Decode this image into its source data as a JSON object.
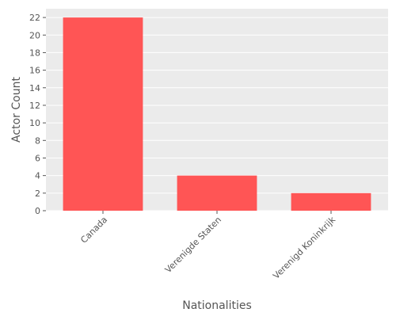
{
  "chart_data": {
    "type": "bar",
    "categories": [
      "Canada",
      "Verenigde Staten",
      "Verenigd Koninkrijk"
    ],
    "values": [
      22,
      4,
      2
    ],
    "title": "",
    "xlabel": "Nationalities",
    "ylabel": "Actor Count",
    "ylim": [
      0,
      23
    ],
    "yticks": [
      0,
      2,
      4,
      6,
      8,
      10,
      12,
      14,
      16,
      18,
      20,
      22
    ],
    "grid": true,
    "legend": "none",
    "colors": {
      "bar": "#ff5555",
      "background": "#ebebeb",
      "gridline": "#ffffff",
      "text": "#555555"
    }
  }
}
